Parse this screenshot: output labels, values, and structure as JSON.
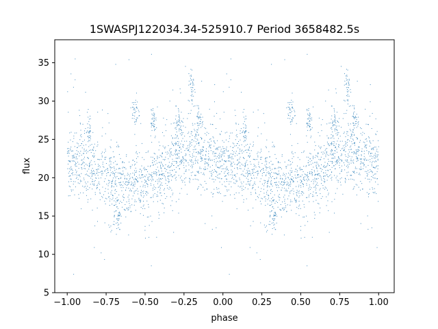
{
  "chart_data": {
    "type": "scatter",
    "title": "1SWASPJ122034.34-525910.7 Period 3658482.5s",
    "xlabel": "phase",
    "ylabel": "flux",
    "xlim": [
      -1.08,
      1.1
    ],
    "ylim": [
      5,
      38
    ],
    "x_ticks": [
      -1.0,
      -0.75,
      -0.5,
      -0.25,
      0.0,
      0.25,
      0.5,
      0.75,
      1.0
    ],
    "x_tick_labels": [
      "−1.00",
      "−0.75",
      "−0.50",
      "−0.25",
      "0.00",
      "0.25",
      "0.50",
      "0.75",
      "1.00"
    ],
    "y_ticks": [
      5,
      10,
      15,
      20,
      25,
      30,
      35
    ],
    "y_tick_labels": [
      "5",
      "10",
      "15",
      "20",
      "25",
      "30",
      "35"
    ],
    "grid": false,
    "legend": "none",
    "point_color": "#1f77b4",
    "series": [
      {
        "phase_range": [
          -1.0,
          1.0
        ],
        "symmetry": "mirror at phase 0 (x and x-1 identical)",
        "baseline_profile": [
          {
            "x": 0.0,
            "y": 22.0
          },
          {
            "x": 0.1,
            "y": 21.5
          },
          {
            "x": 0.2,
            "y": 20.5
          },
          {
            "x": 0.3,
            "y": 19.0
          },
          {
            "x": 0.4,
            "y": 18.8
          },
          {
            "x": 0.5,
            "y": 19.5
          },
          {
            "x": 0.6,
            "y": 20.5
          },
          {
            "x": 0.7,
            "y": 22.5
          },
          {
            "x": 0.8,
            "y": 23.5
          },
          {
            "x": 0.9,
            "y": 22.5
          },
          {
            "x": 1.0,
            "y": 21.5
          }
        ],
        "typical_scatter": 2.5,
        "notable_clumps": [
          {
            "x": 0.14,
            "y": 26.0
          },
          {
            "x": 0.32,
            "y": 15.5
          },
          {
            "x": 0.44,
            "y": 28.5
          },
          {
            "x": 0.55,
            "y": 27.5
          },
          {
            "x": 0.72,
            "y": 27.0
          },
          {
            "x": 0.8,
            "y": 32.0
          },
          {
            "x": 0.85,
            "y": 27.5
          }
        ],
        "outlier_range": [
          6.5,
          36.5
        ]
      }
    ]
  }
}
